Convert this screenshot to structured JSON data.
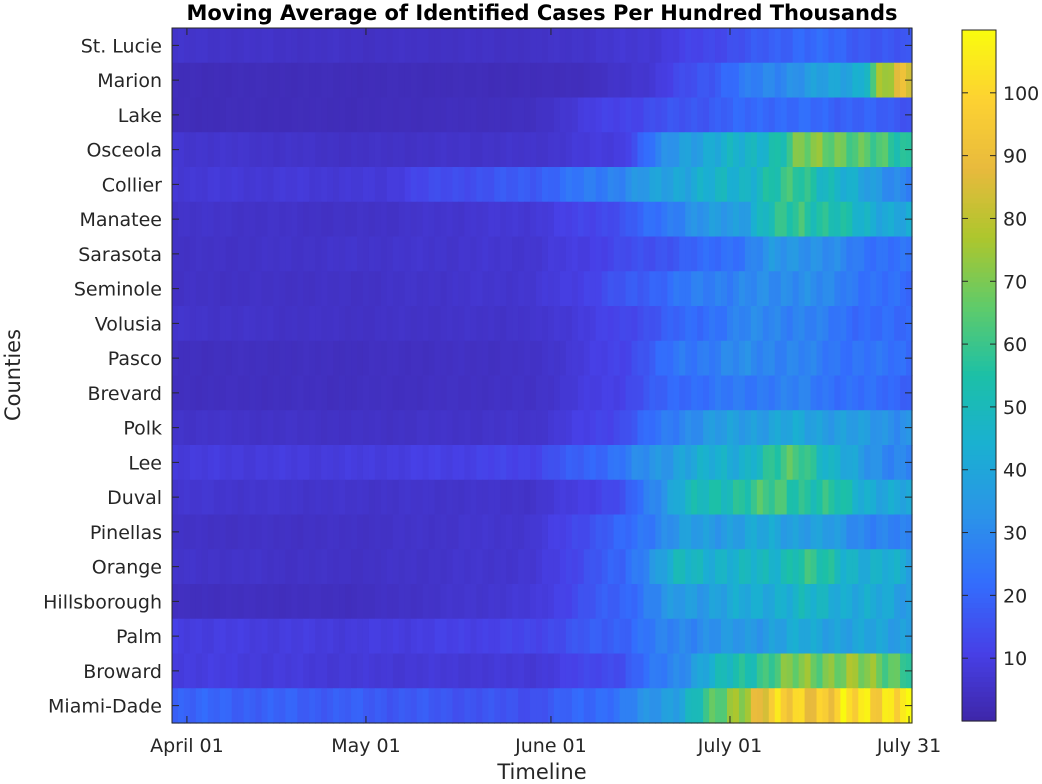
{
  "chart_data": {
    "type": "heatmap",
    "title": "Moving Average of Identified Cases Per Hundred Thousands",
    "xlabel": "Timeline",
    "ylabel": "Counties",
    "x_ticks": [
      {
        "date": "2020-04-01",
        "label": "April 01"
      },
      {
        "date": "2020-05-01",
        "label": "May 01"
      },
      {
        "date": "2020-06-01",
        "label": "June 01"
      },
      {
        "date": "2020-07-01",
        "label": "July 01"
      },
      {
        "date": "2020-07-31",
        "label": "July 31"
      }
    ],
    "x_start": "2020-03-30",
    "x_end": "2020-07-31",
    "counties": [
      "St. Lucie",
      "Marion",
      "Lake",
      "Osceola",
      "Collier",
      "Manatee",
      "Sarasota",
      "Seminole",
      "Volusia",
      "Pasco",
      "Brevard",
      "Polk",
      "Lee",
      "Duval",
      "Pinellas",
      "Orange",
      "Hillsborough",
      "Palm",
      "Broward",
      "Miami-Dade"
    ],
    "colorbar": {
      "min": 0,
      "max": 110,
      "ticks": [
        10,
        20,
        30,
        40,
        50,
        60,
        70,
        80,
        90,
        100
      ],
      "colormap": "parula"
    },
    "profiles": [
      [
        [
          0,
          6
        ],
        [
          30,
          5
        ],
        [
          60,
          5
        ],
        [
          80,
          8
        ],
        [
          90,
          13
        ],
        [
          100,
          18
        ],
        [
          105,
          22
        ],
        [
          110,
          20
        ],
        [
          115,
          18
        ],
        [
          120,
          16
        ],
        [
          124,
          15
        ]
      ],
      [
        [
          0,
          3
        ],
        [
          30,
          3
        ],
        [
          60,
          3
        ],
        [
          70,
          4
        ],
        [
          80,
          8
        ],
        [
          90,
          18
        ],
        [
          100,
          30
        ],
        [
          110,
          38
        ],
        [
          115,
          45
        ],
        [
          118,
          70
        ],
        [
          121,
          80
        ],
        [
          124,
          95
        ]
      ],
      [
        [
          0,
          3
        ],
        [
          30,
          3
        ],
        [
          60,
          4
        ],
        [
          70,
          10
        ],
        [
          80,
          14
        ],
        [
          90,
          18
        ],
        [
          100,
          22
        ],
        [
          110,
          20
        ],
        [
          115,
          20
        ],
        [
          120,
          17
        ],
        [
          124,
          16
        ]
      ],
      [
        [
          0,
          7
        ],
        [
          30,
          5
        ],
        [
          60,
          6
        ],
        [
          75,
          10
        ],
        [
          85,
          38
        ],
        [
          95,
          45
        ],
        [
          102,
          55
        ],
        [
          105,
          68
        ],
        [
          110,
          72
        ],
        [
          115,
          62
        ],
        [
          120,
          60
        ],
        [
          124,
          55
        ]
      ],
      [
        [
          0,
          8
        ],
        [
          35,
          8
        ],
        [
          40,
          12
        ],
        [
          60,
          18
        ],
        [
          75,
          30
        ],
        [
          85,
          42
        ],
        [
          95,
          46
        ],
        [
          100,
          55
        ],
        [
          105,
          58
        ],
        [
          110,
          50
        ],
        [
          115,
          38
        ],
        [
          120,
          32
        ],
        [
          124,
          28
        ]
      ],
      [
        [
          0,
          6
        ],
        [
          30,
          5
        ],
        [
          60,
          8
        ],
        [
          75,
          15
        ],
        [
          85,
          30
        ],
        [
          95,
          38
        ],
        [
          100,
          52
        ],
        [
          105,
          60
        ],
        [
          110,
          55
        ],
        [
          115,
          45
        ],
        [
          124,
          40
        ]
      ],
      [
        [
          0,
          5
        ],
        [
          30,
          6
        ],
        [
          60,
          7
        ],
        [
          75,
          13
        ],
        [
          85,
          18
        ],
        [
          95,
          25
        ],
        [
          100,
          33
        ],
        [
          105,
          35
        ],
        [
          110,
          30
        ],
        [
          115,
          25
        ],
        [
          124,
          22
        ]
      ],
      [
        [
          0,
          5
        ],
        [
          30,
          5
        ],
        [
          60,
          7
        ],
        [
          70,
          12
        ],
        [
          80,
          20
        ],
        [
          90,
          28
        ],
        [
          100,
          30
        ],
        [
          105,
          33
        ],
        [
          110,
          28
        ],
        [
          115,
          25
        ],
        [
          120,
          22
        ],
        [
          124,
          20
        ]
      ],
      [
        [
          0,
          6
        ],
        [
          30,
          5
        ],
        [
          60,
          6
        ],
        [
          75,
          12
        ],
        [
          85,
          20
        ],
        [
          95,
          28
        ],
        [
          100,
          30
        ],
        [
          105,
          28
        ],
        [
          110,
          25
        ],
        [
          115,
          22
        ],
        [
          124,
          20
        ]
      ],
      [
        [
          0,
          4
        ],
        [
          30,
          4
        ],
        [
          60,
          5
        ],
        [
          75,
          12
        ],
        [
          85,
          25
        ],
        [
          95,
          30
        ],
        [
          100,
          30
        ],
        [
          105,
          28
        ],
        [
          110,
          25
        ],
        [
          115,
          24
        ],
        [
          124,
          22
        ]
      ],
      [
        [
          0,
          4
        ],
        [
          30,
          4
        ],
        [
          60,
          5
        ],
        [
          75,
          12
        ],
        [
          85,
          22
        ],
        [
          95,
          25
        ],
        [
          100,
          27
        ],
        [
          105,
          27
        ],
        [
          110,
          24
        ],
        [
          115,
          22
        ],
        [
          124,
          20
        ]
      ],
      [
        [
          0,
          6
        ],
        [
          30,
          5
        ],
        [
          60,
          6
        ],
        [
          75,
          14
        ],
        [
          85,
          30
        ],
        [
          95,
          38
        ],
        [
          100,
          38
        ],
        [
          105,
          40
        ],
        [
          110,
          38
        ],
        [
          115,
          35
        ],
        [
          124,
          32
        ]
      ],
      [
        [
          0,
          9
        ],
        [
          30,
          9
        ],
        [
          60,
          12
        ],
        [
          75,
          25
        ],
        [
          85,
          40
        ],
        [
          95,
          45
        ],
        [
          100,
          55
        ],
        [
          105,
          65
        ],
        [
          110,
          45
        ],
        [
          115,
          35
        ],
        [
          120,
          30
        ],
        [
          124,
          28
        ]
      ],
      [
        [
          0,
          7
        ],
        [
          30,
          6
        ],
        [
          60,
          6
        ],
        [
          75,
          14
        ],
        [
          85,
          45
        ],
        [
          95,
          58
        ],
        [
          100,
          60
        ],
        [
          105,
          58
        ],
        [
          110,
          55
        ],
        [
          115,
          45
        ],
        [
          124,
          38
        ]
      ],
      [
        [
          0,
          5
        ],
        [
          30,
          5
        ],
        [
          60,
          7
        ],
        [
          75,
          20
        ],
        [
          85,
          35
        ],
        [
          95,
          38
        ],
        [
          100,
          40
        ],
        [
          105,
          38
        ],
        [
          110,
          35
        ],
        [
          115,
          30
        ],
        [
          124,
          25
        ]
      ],
      [
        [
          0,
          6
        ],
        [
          30,
          5
        ],
        [
          60,
          7
        ],
        [
          75,
          20
        ],
        [
          85,
          48
        ],
        [
          95,
          45
        ],
        [
          100,
          48
        ],
        [
          105,
          58
        ],
        [
          110,
          52
        ],
        [
          115,
          45
        ],
        [
          124,
          40
        ]
      ],
      [
        [
          0,
          4
        ],
        [
          30,
          4
        ],
        [
          60,
          8
        ],
        [
          75,
          20
        ],
        [
          85,
          36
        ],
        [
          95,
          40
        ],
        [
          100,
          44
        ],
        [
          105,
          46
        ],
        [
          110,
          45
        ],
        [
          115,
          42
        ],
        [
          124,
          36
        ]
      ],
      [
        [
          0,
          10
        ],
        [
          30,
          9
        ],
        [
          60,
          12
        ],
        [
          75,
          20
        ],
        [
          85,
          30
        ],
        [
          95,
          34
        ],
        [
          100,
          38
        ],
        [
          105,
          40
        ],
        [
          110,
          40
        ],
        [
          115,
          38
        ],
        [
          124,
          38
        ]
      ],
      [
        [
          0,
          10
        ],
        [
          30,
          8
        ],
        [
          60,
          8
        ],
        [
          75,
          15
        ],
        [
          85,
          32
        ],
        [
          95,
          55
        ],
        [
          100,
          62
        ],
        [
          105,
          70
        ],
        [
          110,
          72
        ],
        [
          115,
          70
        ],
        [
          120,
          68
        ],
        [
          124,
          60
        ]
      ],
      [
        [
          0,
          20
        ],
        [
          30,
          18
        ],
        [
          60,
          15
        ],
        [
          75,
          25
        ],
        [
          85,
          42
        ],
        [
          90,
          60
        ],
        [
          95,
          80
        ],
        [
          100,
          92
        ],
        [
          105,
          98
        ],
        [
          110,
          96
        ],
        [
          115,
          100
        ],
        [
          120,
          106
        ],
        [
          124,
          108
        ]
      ]
    ]
  }
}
